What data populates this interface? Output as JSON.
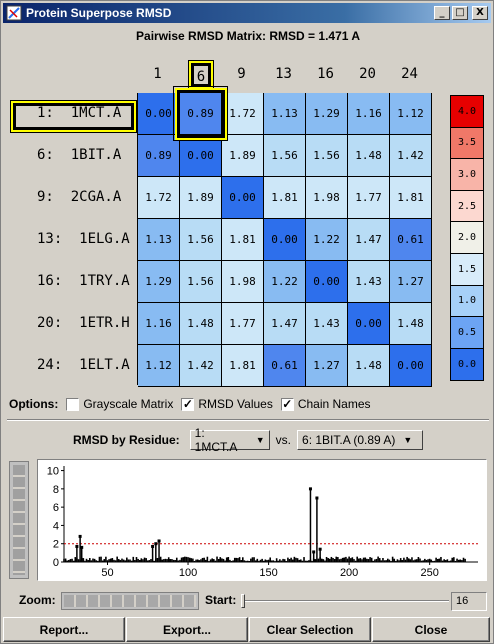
{
  "window": {
    "title": "Protein Superpose RMSD",
    "minimize": "_",
    "maximize": "□",
    "close": "X"
  },
  "matrix": {
    "title": "Pairwise RMSD Matrix:  RMSD = 1.471 A",
    "columns": [
      "1",
      "6",
      "9",
      "13",
      "16",
      "20",
      "24"
    ],
    "selected_column": 1,
    "rows": [
      "1:  1MCT.A",
      "6:  1BIT.A",
      "9:  2CGA.A",
      "13:  1ELG.A",
      "16:  1TRY.A",
      "20:  1ETR.H",
      "24:  1ELT.A"
    ],
    "selected_row": 0,
    "values": [
      [
        "0.00",
        "0.89",
        "1.72",
        "1.13",
        "1.29",
        "1.16",
        "1.12"
      ],
      [
        "0.89",
        "0.00",
        "1.89",
        "1.56",
        "1.56",
        "1.48",
        "1.42"
      ],
      [
        "1.72",
        "1.89",
        "0.00",
        "1.81",
        "1.98",
        "1.77",
        "1.81"
      ],
      [
        "1.13",
        "1.56",
        "1.81",
        "0.00",
        "1.22",
        "1.47",
        "0.61"
      ],
      [
        "1.29",
        "1.56",
        "1.98",
        "1.22",
        "0.00",
        "1.43",
        "1.27"
      ],
      [
        "1.16",
        "1.48",
        "1.77",
        "1.47",
        "1.43",
        "0.00",
        "1.48"
      ],
      [
        "1.12",
        "1.42",
        "1.81",
        "0.61",
        "1.27",
        "1.48",
        "0.00"
      ]
    ]
  },
  "legend": {
    "labels": [
      "4.0",
      "3.5",
      "3.0",
      "2.5",
      "2.0",
      "1.5",
      "1.0",
      "0.5",
      "0.0"
    ],
    "colors": [
      "#e60000",
      "#f07868",
      "#f8b4a8",
      "#fcd8d0",
      "#f0f0e8",
      "#d8ecfa",
      "#a6d0f8",
      "#6ca4f4",
      "#2d6fec"
    ]
  },
  "colors": {
    "zero": "#2d6fec",
    "low": "#4f86ee",
    "mid": "#88bbf2",
    "high": "#b8dcf5",
    "higher": "#cde7f8",
    "selection": "#ffff00"
  },
  "options": {
    "label": "Options:",
    "grayscale": {
      "label": "Grayscale Matrix",
      "checked": false
    },
    "rmsd_values": {
      "label": "RMSD Values",
      "checked": true
    },
    "chain_names": {
      "label": "Chain Names",
      "checked": true
    }
  },
  "residue": {
    "label": "RMSD by Residue:",
    "first": "1: 1MCT.A",
    "vs": "vs.",
    "second": "6: 1BIT.A (0.89 A)"
  },
  "chart_data": {
    "type": "bar",
    "title": "",
    "xlabel": "",
    "ylabel": "",
    "xlim": [
      23,
      280
    ],
    "ylim": [
      0,
      10.5
    ],
    "xticks": [
      50,
      100,
      150,
      200,
      250
    ],
    "yticks": [
      0,
      2,
      4,
      6,
      8,
      10
    ],
    "threshold": 2,
    "threshold_color": "#cc0000",
    "peaks": [
      {
        "x": 31,
        "y": 1.7
      },
      {
        "x": 33,
        "y": 2.8
      },
      {
        "x": 34,
        "y": 1.6
      },
      {
        "x": 78,
        "y": 1.7
      },
      {
        "x": 80,
        "y": 2.0
      },
      {
        "x": 82,
        "y": 2.3
      },
      {
        "x": 176,
        "y": 8.0
      },
      {
        "x": 178,
        "y": 1.1
      },
      {
        "x": 180,
        "y": 7.0
      },
      {
        "x": 182,
        "y": 1.4
      }
    ],
    "baseline_range": [
      23,
      272
    ]
  },
  "zoom": {
    "label": "Zoom:"
  },
  "start": {
    "label": "Start:",
    "value": "16"
  },
  "buttons": {
    "report": "Report...",
    "export": "Export...",
    "clear": "Clear Selection",
    "close": "Close"
  }
}
